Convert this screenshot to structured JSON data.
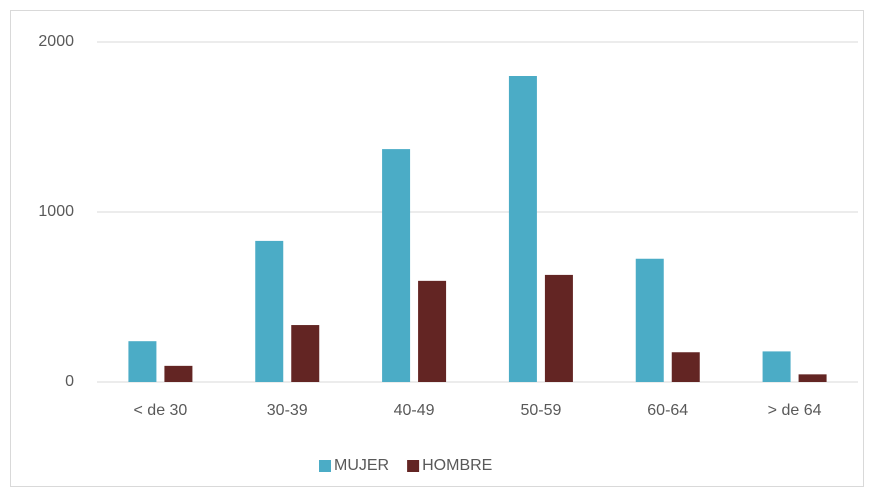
{
  "chart_data": {
    "type": "bar",
    "categories": [
      "< de 30",
      "30-39",
      "40-49",
      "50-59",
      "60-64",
      "> de 64"
    ],
    "series": [
      {
        "name": "MUJER",
        "color": "#4bacc6",
        "values": [
          240,
          830,
          1370,
          1800,
          725,
          180
        ]
      },
      {
        "name": "HOMBRE",
        "color": "#632523",
        "values": [
          95,
          335,
          595,
          630,
          175,
          45
        ]
      }
    ],
    "ylim": [
      0,
      2000
    ],
    "yticks": [
      0,
      1000,
      2000
    ],
    "grid": true,
    "legend": "bottom"
  }
}
